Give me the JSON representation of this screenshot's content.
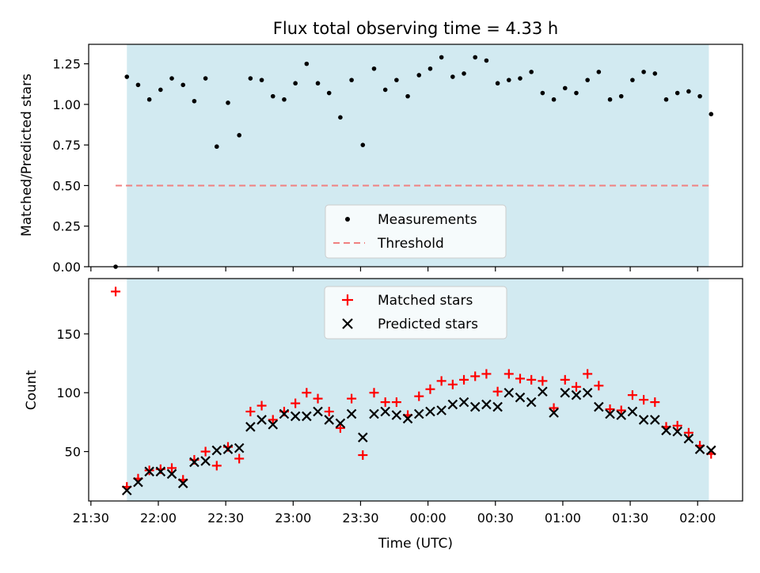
{
  "chart_data": [
    {
      "type": "scatter",
      "title": "Flux total observing time = 4.33 h",
      "xlabel": "",
      "ylabel": "Matched/Predicted stars",
      "ylim": [
        0,
        1.37
      ],
      "yticks": [
        "0.00",
        "0.25",
        "0.50",
        "0.75",
        "1.00",
        "1.25"
      ],
      "xlim": [
        "21:29",
        "02:20"
      ],
      "shaded_interval": [
        "21:46",
        "02:05"
      ],
      "shade_color": "#add8e6",
      "threshold": 0.5,
      "threshold_color": "#f08080",
      "legend_position": "lower center",
      "legend": [
        "Measurements",
        "Threshold"
      ],
      "series": [
        {
          "name": "Measurements",
          "color": "#000000",
          "points": [
            [
              "21:41",
              0.0
            ],
            [
              "21:46",
              1.17
            ],
            [
              "21:51",
              1.12
            ],
            [
              "21:56",
              1.03
            ],
            [
              "22:01",
              1.09
            ],
            [
              "22:06",
              1.16
            ],
            [
              "22:11",
              1.12
            ],
            [
              "22:16",
              1.02
            ],
            [
              "22:21",
              1.16
            ],
            [
              "22:26",
              0.74
            ],
            [
              "22:31",
              1.01
            ],
            [
              "22:36",
              0.81
            ],
            [
              "22:41",
              1.16
            ],
            [
              "22:46",
              1.15
            ],
            [
              "22:51",
              1.05
            ],
            [
              "22:56",
              1.03
            ],
            [
              "23:01",
              1.13
            ],
            [
              "23:06",
              1.25
            ],
            [
              "23:11",
              1.13
            ],
            [
              "23:16",
              1.07
            ],
            [
              "23:21",
              0.92
            ],
            [
              "23:26",
              1.15
            ],
            [
              "23:31",
              0.75
            ],
            [
              "23:36",
              1.22
            ],
            [
              "23:41",
              1.09
            ],
            [
              "23:46",
              1.15
            ],
            [
              "23:51",
              1.05
            ],
            [
              "23:56",
              1.18
            ],
            [
              "00:01",
              1.22
            ],
            [
              "00:06",
              1.29
            ],
            [
              "00:11",
              1.17
            ],
            [
              "00:16",
              1.19
            ],
            [
              "00:21",
              1.29
            ],
            [
              "00:26",
              1.27
            ],
            [
              "00:31",
              1.13
            ],
            [
              "00:36",
              1.15
            ],
            [
              "00:41",
              1.16
            ],
            [
              "00:46",
              1.2
            ],
            [
              "00:51",
              1.07
            ],
            [
              "00:56",
              1.03
            ],
            [
              "01:01",
              1.1
            ],
            [
              "01:06",
              1.07
            ],
            [
              "01:11",
              1.15
            ],
            [
              "01:16",
              1.2
            ],
            [
              "01:21",
              1.03
            ],
            [
              "01:26",
              1.05
            ],
            [
              "01:31",
              1.15
            ],
            [
              "01:36",
              1.2
            ],
            [
              "01:41",
              1.19
            ],
            [
              "01:46",
              1.03
            ],
            [
              "01:51",
              1.07
            ],
            [
              "01:56",
              1.08
            ],
            [
              "02:01",
              1.05
            ],
            [
              "02:06",
              0.94
            ]
          ]
        }
      ]
    },
    {
      "type": "scatter",
      "title": "",
      "xlabel": "Time (UTC)",
      "ylabel": "Count",
      "ylim": [
        8,
        197
      ],
      "yticks": [
        "50",
        "100",
        "150"
      ],
      "xlim": [
        "21:29",
        "02:20"
      ],
      "xticks": [
        "21:30",
        "22:00",
        "22:30",
        "23:00",
        "23:30",
        "00:00",
        "00:30",
        "01:00",
        "01:30",
        "02:00"
      ],
      "shaded_interval": [
        "21:46",
        "02:05"
      ],
      "shade_color": "#add8e6",
      "legend_position": "upper center",
      "legend": [
        "Matched stars",
        "Predicted stars"
      ],
      "x": [
        "21:41",
        "21:46",
        "21:51",
        "21:56",
        "22:01",
        "22:06",
        "22:11",
        "22:16",
        "22:21",
        "22:26",
        "22:31",
        "22:36",
        "22:41",
        "22:46",
        "22:51",
        "22:56",
        "23:01",
        "23:06",
        "23:11",
        "23:16",
        "23:21",
        "23:26",
        "23:31",
        "23:36",
        "23:41",
        "23:46",
        "23:51",
        "23:56",
        "00:01",
        "00:06",
        "00:11",
        "00:16",
        "00:21",
        "00:26",
        "00:31",
        "00:36",
        "00:41",
        "00:46",
        "00:51",
        "00:56",
        "01:01",
        "01:06",
        "01:11",
        "01:16",
        "01:21",
        "01:26",
        "01:31",
        "01:36",
        "01:41",
        "01:46",
        "01:51",
        "01:56",
        "02:01",
        "02:06"
      ],
      "series": [
        {
          "name": "Matched stars",
          "marker": "+",
          "color": "#ff0000",
          "values": [
            186,
            20,
            27,
            34,
            35,
            36,
            26,
            43,
            50,
            38,
            54,
            44,
            84,
            89,
            77,
            84,
            91,
            100,
            95,
            84,
            70,
            95,
            47,
            100,
            92,
            92,
            81,
            97,
            103,
            110,
            107,
            111,
            114,
            116,
            101,
            116,
            112,
            111,
            110,
            87,
            111,
            105,
            116,
            106,
            86,
            85,
            98,
            94,
            92,
            71,
            72,
            66,
            55,
            48
          ]
        },
        {
          "name": "Predicted stars",
          "marker": "x",
          "color": "#000000",
          "values": [
            null,
            17,
            24,
            33,
            33,
            31,
            23,
            41,
            42,
            51,
            52,
            53,
            71,
            77,
            73,
            82,
            80,
            80,
            84,
            77,
            74,
            82,
            62,
            82,
            84,
            81,
            78,
            82,
            84,
            85,
            90,
            92,
            88,
            90,
            88,
            100,
            96,
            92,
            101,
            83,
            100,
            98,
            100,
            88,
            82,
            81,
            84,
            77,
            77,
            68,
            67,
            61,
            52,
            51
          ]
        }
      ]
    }
  ]
}
